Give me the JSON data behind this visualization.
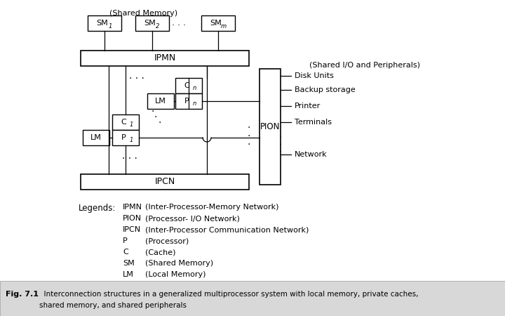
{
  "bg_color": "#ffffff",
  "caption_bg": "#e0e0e0",
  "shared_mem_label": "(Shared Memory)",
  "shared_io_label": "(Shared I/O and Peripherals)",
  "ipmn_label": "IPMN",
  "ipcn_label": "IPCN",
  "pion_label": "PION",
  "peripherals": [
    "Disk Units",
    "Backup storage",
    "Printer",
    "Terminals",
    "Network"
  ],
  "legends_title": "Legends:",
  "legends": [
    [
      "IPMN",
      "(Inter-Processor-Memory Network)"
    ],
    [
      "PION",
      "(Processor- I/O Network)"
    ],
    [
      "IPCN",
      "(Inter-Processor Communication Network)"
    ],
    [
      "P",
      "(Processor)"
    ],
    [
      "C",
      "(Cache)"
    ],
    [
      "SM",
      "(Shared Memory)"
    ],
    [
      "LM",
      "(Local Memory)"
    ]
  ],
  "caption_bold": "Fig. 7.1",
  "caption_text": "  Interconnection structures in a generalized multiprocessor system with local memory, private caches,",
  "caption_text2": "shared memory, and shared peripherals"
}
